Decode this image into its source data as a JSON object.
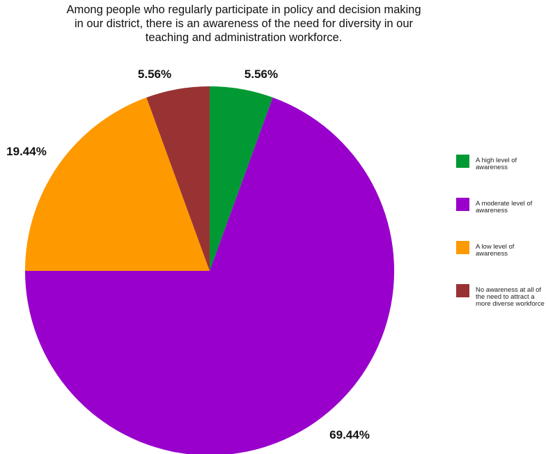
{
  "chart_data": {
    "type": "pie",
    "title": "Among people who regularly participate in policy and decision making\nin our district, there is an awareness of the need for diversity in our\nteaching and administration workforce.",
    "categories": [
      "A high level of awareness",
      "A moderate level of awareness",
      "A low level of awareness",
      "No awareness at all of the need to attract a more diverse workforce"
    ],
    "values": [
      5.56,
      69.44,
      19.44,
      5.56
    ],
    "value_labels": [
      "5.56%",
      "69.44%",
      "19.44%",
      "5.56%"
    ],
    "colors": [
      "#009933",
      "#9900CC",
      "#FF9900",
      "#993333"
    ],
    "legend_position": "right",
    "start_angle": "12 o'clock",
    "direction": "clockwise"
  }
}
